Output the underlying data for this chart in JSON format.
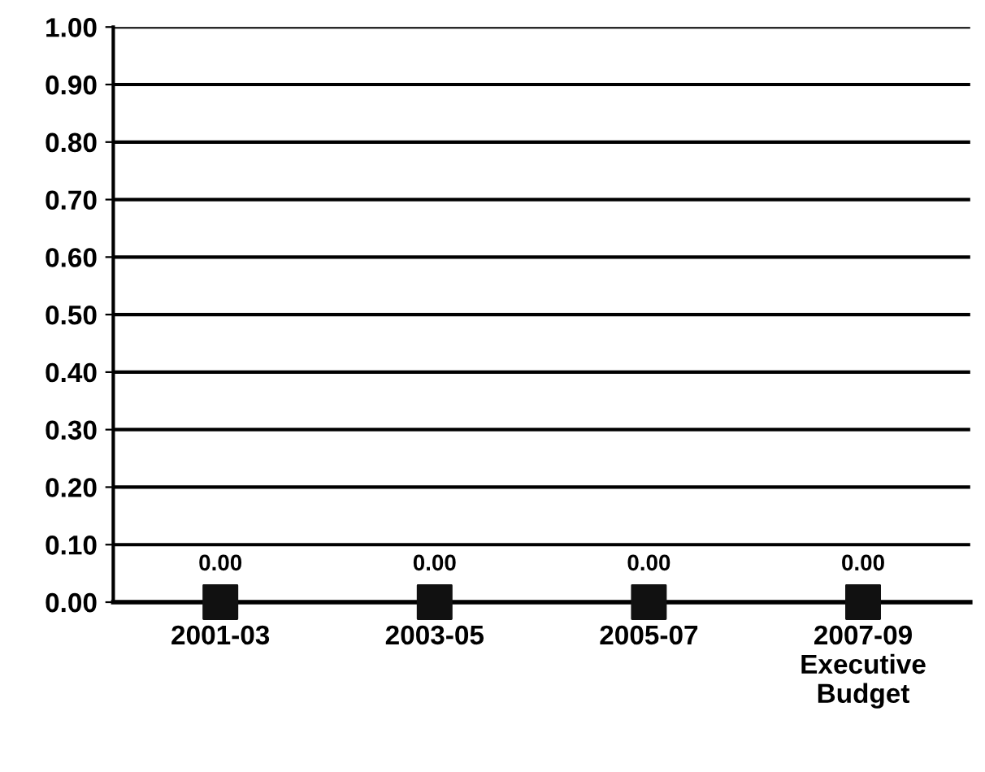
{
  "chart_data": {
    "type": "scatter",
    "categories": [
      "2001-03",
      "2003-05",
      "2005-07",
      "2007-09\nExecutive\nBudget"
    ],
    "series": [
      {
        "color": "#111111",
        "values": [
          0,
          0,
          0,
          0
        ],
        "value_labels": [
          "0.00",
          "0.00",
          "0.00",
          "0.00"
        ]
      }
    ],
    "marker": "square",
    "ylim": [
      0,
      1
    ],
    "yticks": [
      {
        "value": 0,
        "label": "0.00"
      },
      {
        "value": 0.1,
        "label": "0.10"
      },
      {
        "value": 0.2,
        "label": "0.20"
      },
      {
        "value": 0.3,
        "label": "0.30"
      },
      {
        "value": 0.4,
        "label": "0.40"
      },
      {
        "value": 0.5,
        "label": "0.50"
      },
      {
        "value": 0.6,
        "label": "0.60"
      },
      {
        "value": 0.7,
        "label": "0.70"
      },
      {
        "value": 0.8,
        "label": "0.80"
      },
      {
        "value": 0.9,
        "label": "0.90"
      },
      {
        "value": 1,
        "label": "1.00"
      }
    ],
    "grid": "y"
  }
}
